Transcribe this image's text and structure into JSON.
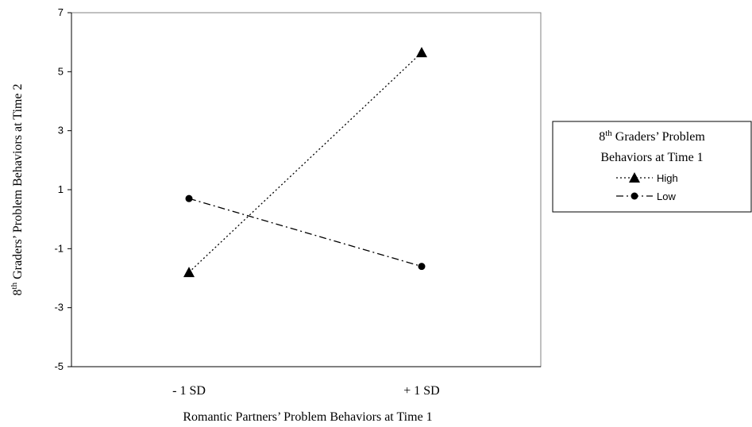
{
  "chart_data": {
    "type": "line",
    "categories": [
      "- 1 SD",
      "+ 1 SD"
    ],
    "series": [
      {
        "name": "High",
        "values": [
          -1.8,
          5.65
        ],
        "marker": "triangle",
        "dash": "dotted"
      },
      {
        "name": "Low",
        "values": [
          0.7,
          -1.6
        ],
        "marker": "circle",
        "dash": "dash-dot"
      }
    ],
    "ylim": [
      -5,
      7
    ],
    "yticks": [
      -5,
      -3,
      -1,
      1,
      3,
      5,
      7
    ],
    "xlabel": "Romantic Partners’ Problem Behaviors at Time 1",
    "ylabel": {
      "prefix": "8",
      "sup": "th",
      "rest": " Graders’ Problem Behaviors at Time 2"
    },
    "legend": {
      "title_line1": {
        "prefix": "8",
        "sup": "th",
        "rest": " Graders’ Problem"
      },
      "title_line2": "Behaviors at Time 1",
      "placement": "right"
    },
    "grid": false,
    "colors": {
      "line": "#000000",
      "plot_border": "#808080",
      "axis": "#000000"
    }
  }
}
